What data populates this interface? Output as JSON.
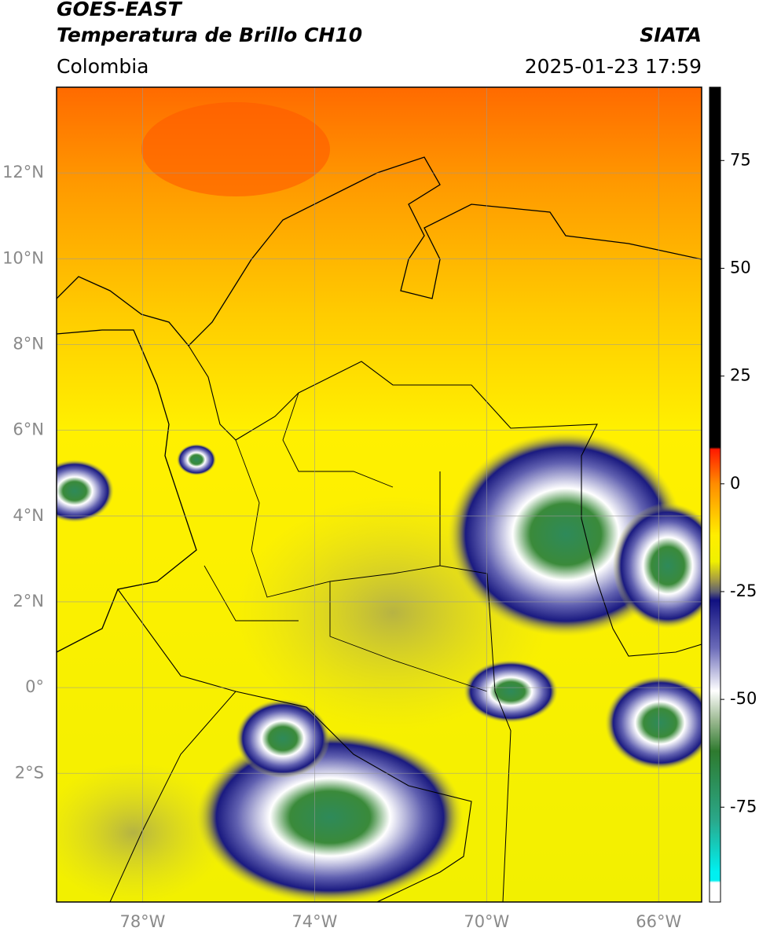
{
  "header": {
    "title": "GOES-EAST",
    "subtitle": "Temperatura de Brillo CH10",
    "source": "SIATA",
    "region": "Colombia",
    "datetime": "2025-01-23 17:59"
  },
  "map": {
    "xlim": [
      -80,
      -65
    ],
    "ylim": [
      -5,
      14
    ],
    "xticks": [
      {
        "value": -78,
        "label": "78°W"
      },
      {
        "value": -74,
        "label": "74°W"
      },
      {
        "value": -70,
        "label": "70°W"
      },
      {
        "value": -66,
        "label": "66°W"
      }
    ],
    "yticks": [
      {
        "value": 12,
        "label": "12°N"
      },
      {
        "value": 10,
        "label": "10°N"
      },
      {
        "value": 8,
        "label": "8°N"
      },
      {
        "value": 6,
        "label": "6°N"
      },
      {
        "value": 4,
        "label": "4°N"
      },
      {
        "value": 2,
        "label": "2°N"
      },
      {
        "value": 0,
        "label": "0°"
      },
      {
        "value": -2,
        "label": "2°S"
      }
    ],
    "grid": true
  },
  "colorbar": {
    "lim": [
      -97,
      92
    ],
    "ticks": [
      75,
      50,
      25,
      0,
      -25,
      -50,
      -75
    ],
    "colormap": [
      [
        92,
        "#000000"
      ],
      [
        8.5,
        "#000000"
      ],
      [
        8,
        "#ff1a00"
      ],
      [
        0,
        "#ff8c00"
      ],
      [
        -12,
        "#ffee00"
      ],
      [
        -18,
        "#f0f000"
      ],
      [
        -22,
        "#aaa040"
      ],
      [
        -25,
        "#606070"
      ],
      [
        -27,
        "#101080"
      ],
      [
        -38,
        "#6a6ab8"
      ],
      [
        -48,
        "#ffffff"
      ],
      [
        -55,
        "#9ab890"
      ],
      [
        -62,
        "#2e7a2e"
      ],
      [
        -78,
        "#2aa88a"
      ],
      [
        -90,
        "#00f0f0"
      ],
      [
        -92,
        "#00f0f0"
      ],
      [
        -92.5,
        "#ffffff"
      ],
      [
        -97,
        "#ffffff"
      ]
    ]
  }
}
